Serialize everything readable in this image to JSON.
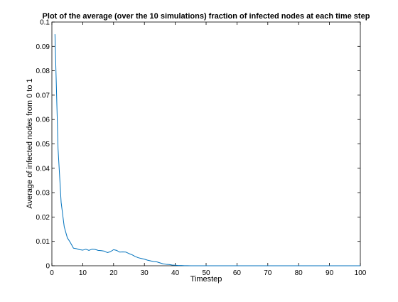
{
  "chart_data": {
    "type": "line",
    "title": "Plot of the average (over the 10 simulations) fraction of infected nodes at each time step",
    "xlabel": "Timestep",
    "ylabel": "Average of infected nodes from 0 to 1",
    "xlim": [
      0,
      100
    ],
    "ylim": [
      0,
      0.1
    ],
    "xticks": [
      "0",
      "10",
      "20",
      "30",
      "40",
      "50",
      "60",
      "70",
      "80",
      "90",
      "100"
    ],
    "yticks": [
      "0",
      "0.01",
      "0.02",
      "0.03",
      "0.04",
      "0.05",
      "0.06",
      "0.07",
      "0.08",
      "0.09",
      "0.1"
    ],
    "grid": false,
    "legend": "none",
    "line_color": "#0072bd",
    "series": [
      {
        "x": [
          1,
          2,
          3,
          4,
          5,
          6,
          7,
          8,
          9,
          10,
          11,
          12,
          13,
          14,
          15,
          16,
          17,
          18,
          19,
          20,
          21,
          22,
          23,
          24,
          25,
          26,
          27,
          28,
          29,
          30,
          31,
          32,
          33,
          34,
          35,
          36,
          37,
          38,
          39,
          40,
          41,
          42,
          43,
          44,
          45,
          46,
          47,
          48,
          49,
          50,
          51,
          52,
          53,
          54,
          55,
          56,
          57,
          58,
          59,
          60,
          61,
          62,
          63,
          64,
          65,
          66,
          67,
          68,
          69,
          70,
          71,
          72,
          73,
          74,
          75,
          76,
          77,
          78,
          79,
          80,
          81,
          82,
          83,
          84,
          85,
          86,
          87,
          88,
          89,
          90,
          91,
          92,
          93,
          94,
          95,
          96,
          97,
          98,
          99,
          100
        ],
        "values": [
          0.095,
          0.048,
          0.026,
          0.016,
          0.0115,
          0.0095,
          0.0072,
          0.007,
          0.0066,
          0.0064,
          0.0068,
          0.0063,
          0.0068,
          0.0067,
          0.0063,
          0.0062,
          0.006,
          0.0054,
          0.0058,
          0.0066,
          0.0063,
          0.0056,
          0.0057,
          0.0056,
          0.005,
          0.0045,
          0.0038,
          0.0033,
          0.003,
          0.0027,
          0.0023,
          0.002,
          0.0017,
          0.0016,
          0.0012,
          0.0008,
          0.0006,
          0.0005,
          0.0003,
          0.0002,
          0.0001,
          0.0001,
          5e-05,
          2e-05,
          0,
          0,
          0,
          0,
          0,
          0,
          0,
          0,
          0,
          0,
          0,
          0,
          0,
          0,
          0,
          0,
          0,
          0,
          0,
          0,
          0,
          0,
          0,
          0,
          0,
          0,
          0,
          0,
          0,
          0,
          0,
          0,
          0,
          0,
          0,
          0,
          0,
          0,
          0,
          0,
          0,
          0,
          0,
          0,
          0,
          0,
          0,
          0,
          0,
          0,
          0,
          0,
          0,
          0,
          0,
          0
        ]
      }
    ]
  }
}
